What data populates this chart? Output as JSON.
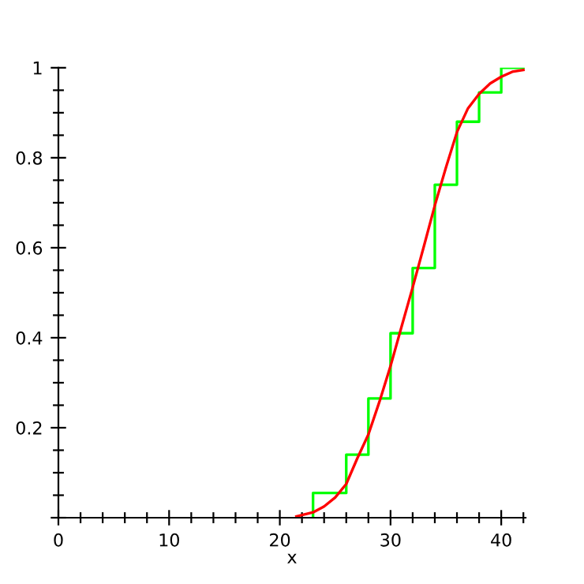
{
  "chart_data": {
    "type": "line",
    "xlabel": "x",
    "series": [
      {
        "type": "step",
        "color": "#00ff00",
        "x": [
          23,
          23,
          26,
          28,
          30,
          32,
          34,
          36,
          38,
          40,
          42
        ],
        "values": [
          0,
          0.055,
          0.14,
          0.265,
          0.41,
          0.555,
          0.74,
          0.88,
          0.945,
          1.0,
          1.0
        ]
      },
      {
        "color": "#ff0000",
        "x": [
          21.5,
          22,
          23,
          24,
          25,
          26,
          27,
          28,
          29,
          30,
          31,
          32,
          33,
          34,
          35,
          36,
          37,
          38,
          39,
          40,
          41,
          42
        ],
        "values": [
          0.003,
          0.006,
          0.012,
          0.025,
          0.045,
          0.075,
          0.132,
          0.185,
          0.258,
          0.337,
          0.425,
          0.512,
          0.602,
          0.694,
          0.778,
          0.857,
          0.91,
          0.942,
          0.965,
          0.98,
          0.991,
          0.995
        ]
      }
    ],
    "xlim": [
      0,
      42.2
    ],
    "ylim": [
      0,
      1.0
    ],
    "xticks": [
      0,
      10,
      20,
      30,
      40
    ],
    "yticks": [
      {
        "value": 0,
        "label": null
      },
      0.2,
      0.4,
      0.6,
      0.8,
      1
    ],
    "grid": false,
    "legend": false,
    "marker": "none",
    "line_style": "solid"
  }
}
